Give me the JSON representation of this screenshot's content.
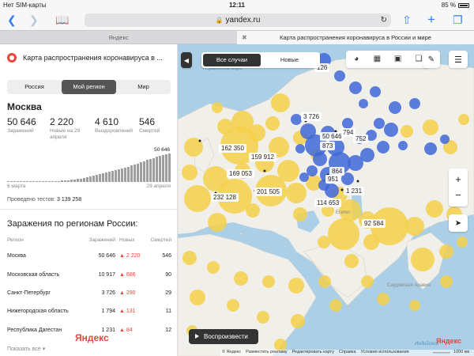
{
  "status": {
    "carrier": "Нет SIM-карты",
    "time": "12:11",
    "battery": "85 %"
  },
  "browser": {
    "url": "yandex.ru",
    "tabs": [
      "Яндекс",
      "Карта распространения коронавируса в России и мире"
    ]
  },
  "panel": {
    "title": "Карта распространения коронавируса в ...",
    "segments": [
      "Россия",
      "Мой регион",
      "Мир"
    ],
    "city": "Москва",
    "stats": [
      {
        "value": "50 646",
        "label": "Заражений"
      },
      {
        "value": "2 220",
        "label": "Новые на 29 апреля"
      },
      {
        "value": "4 610",
        "label": "Выздоровлений"
      },
      {
        "value": "546",
        "label": "Смертей"
      }
    ],
    "chart_peak": "50 646",
    "date_start": "6 марта",
    "date_end": "29 апреля",
    "tests_label": "Проведено тестов:",
    "tests_value": "3 139 258",
    "regions_title": "Заражения по регионам России:",
    "table_headers": [
      "Регион",
      "Заражений",
      "Новых",
      "Смертей"
    ],
    "rows": [
      {
        "region": "Москва",
        "cases": "50 646",
        "new": "2 220",
        "deaths": "546"
      },
      {
        "region": "Московская область",
        "cases": "10 917",
        "new": "686",
        "deaths": "90"
      },
      {
        "region": "Санкт-Петербург",
        "cases": "3 726",
        "new": "290",
        "deaths": "29"
      },
      {
        "region": "Нижегородская область",
        "cases": "1 794",
        "new": "131",
        "deaths": "11"
      },
      {
        "region": "Республика Дагестан",
        "cases": "1 231",
        "new": "84",
        "deaths": "12"
      }
    ],
    "show_all": "Показать все",
    "logo": "Яндекс"
  },
  "map": {
    "segments": [
      "Все случаи",
      "Новые"
    ],
    "labels": [
      "126",
      "3 726",
      "794",
      "50 646",
      "752",
      "873",
      "162 350",
      "159 912",
      "169 053",
      "864",
      "951",
      "232 128",
      "201 505",
      "1 231",
      "114 653",
      "92 584"
    ],
    "geo": [
      "Норвежское море",
      "Египет",
      "Саудовская Аравия",
      "Индийский"
    ],
    "play": "Воспроизвести",
    "footer": [
      "© Яндекс",
      "Разместить рекламу",
      "Редактировать карту",
      "Справка",
      "Условия использования"
    ],
    "scale": "1000 км",
    "logo": "Яндекс"
  },
  "colors": {
    "accent": "#e8453c",
    "yellow_bubbles": "#f5d04a",
    "blue_bubbles": "#3f68d8",
    "link": "#2f7cf6"
  }
}
